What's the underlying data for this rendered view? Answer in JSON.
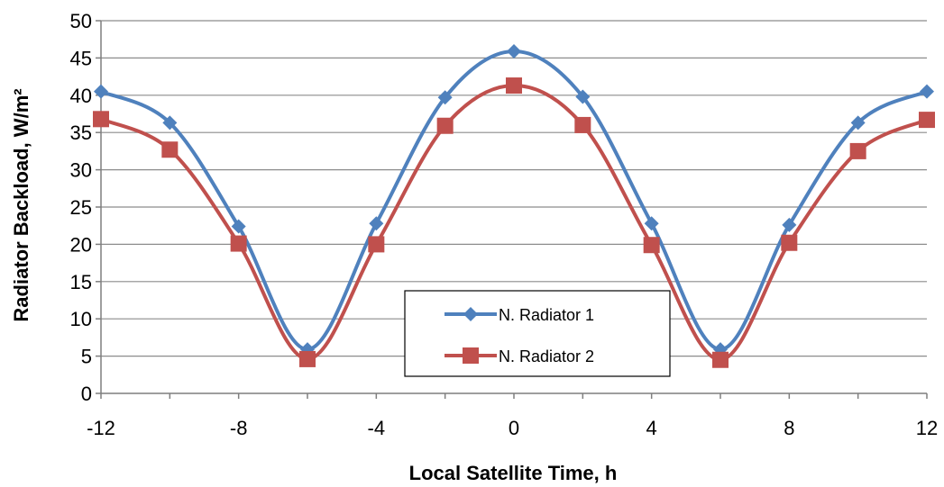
{
  "chart_data": {
    "type": "line",
    "xlabel": "Local Satellite Time, h",
    "ylabel": "Radiator Backload, W/m²",
    "xlim": [
      -12,
      12
    ],
    "ylim": [
      0,
      50
    ],
    "x_ticks": [
      "-12",
      "-8",
      "-4",
      "0",
      "4",
      "8",
      "12"
    ],
    "y_ticks": [
      "0",
      "5",
      "10",
      "15",
      "20",
      "25",
      "30",
      "35",
      "40",
      "45",
      "50"
    ],
    "grid": "horizontal",
    "legend_position": "center-right",
    "x": [
      -12,
      -10,
      -8,
      -6,
      -4,
      -2,
      0,
      2,
      4,
      6,
      8,
      10,
      12
    ],
    "series": [
      {
        "name": "N. Radiator 1",
        "color": "#4f81bd",
        "marker": "diamond",
        "values": [
          40.5,
          36.3,
          22.4,
          5.9,
          22.8,
          39.7,
          45.9,
          39.8,
          22.8,
          5.9,
          22.6,
          36.3,
          40.5
        ]
      },
      {
        "name": "N. Radiator 2",
        "color": "#c0504d",
        "marker": "square",
        "values": [
          36.8,
          32.7,
          20.1,
          4.6,
          20.0,
          35.9,
          41.3,
          36.0,
          19.9,
          4.5,
          20.2,
          32.5,
          36.7
        ]
      }
    ]
  }
}
